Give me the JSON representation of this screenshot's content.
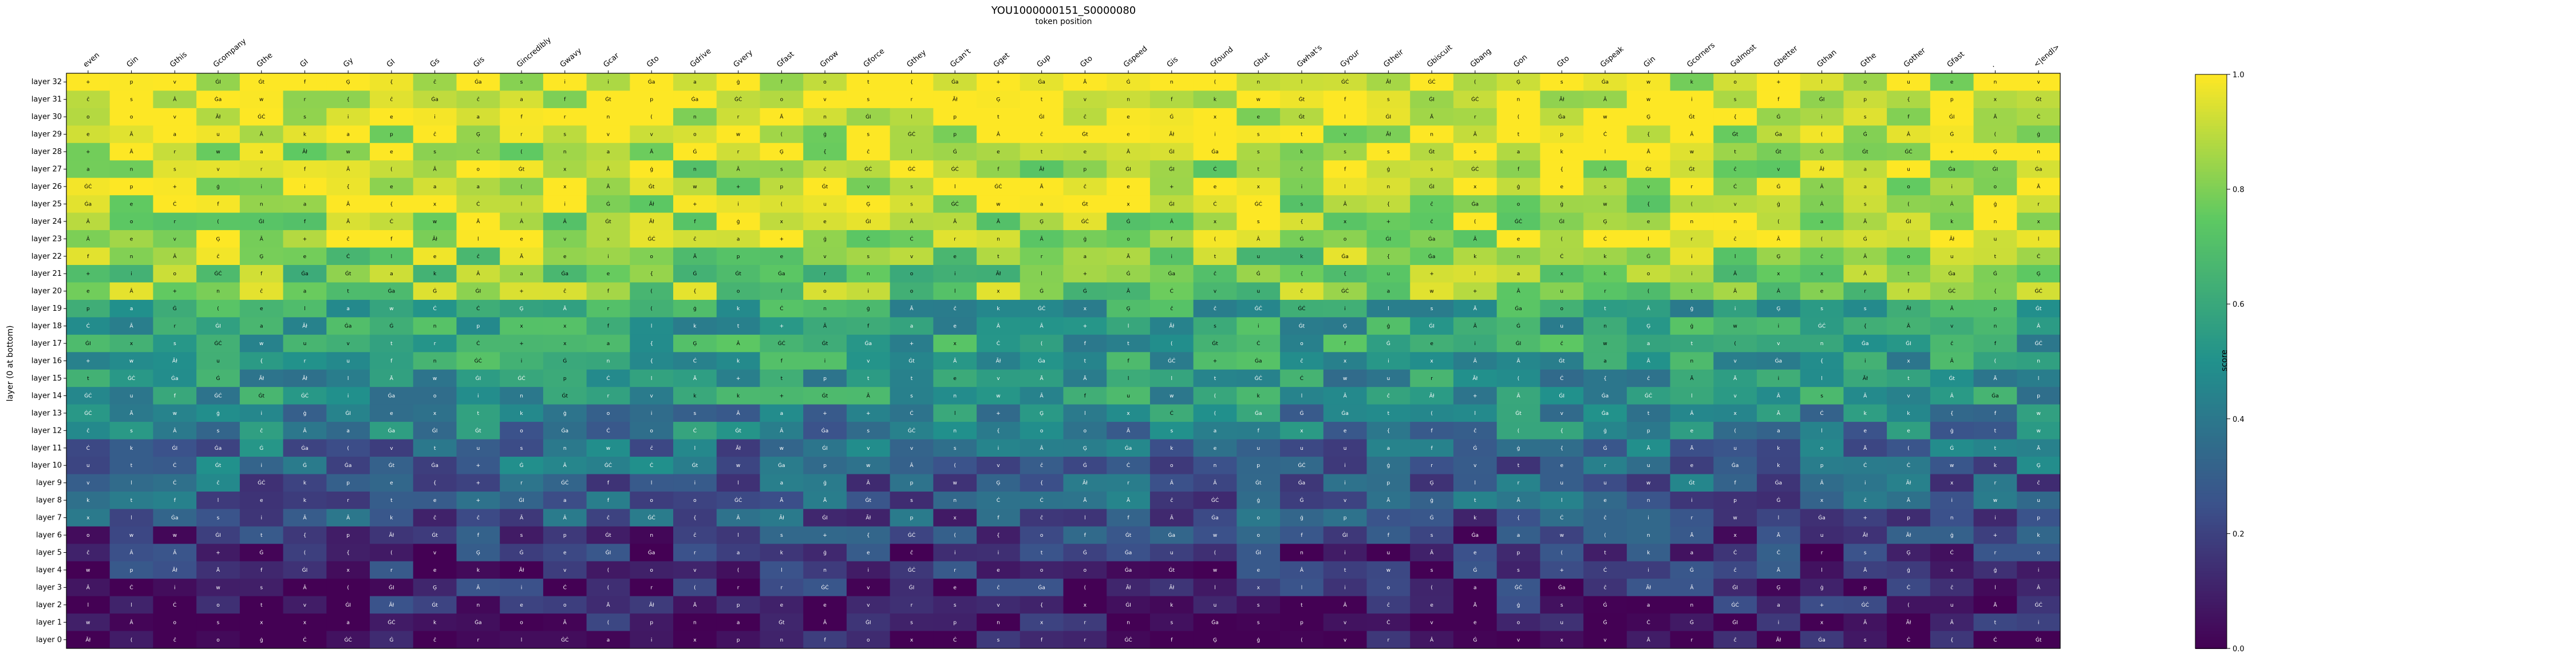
{
  "chart_data": {
    "type": "heatmap",
    "title": "YOU1000000151_S0000080",
    "subtitle": "token position",
    "ylabel": "layer (0 at bottom)",
    "colorbar_label": "score",
    "colormap": "viridis",
    "vmin": 0.0,
    "vmax": 1.0,
    "colorbar_ticks": [
      "0.0",
      "0.2",
      "0.4",
      "0.6",
      "0.8",
      "1.0"
    ],
    "x_tokens": [
      "even",
      "Gin",
      "Gthis",
      "Gcompany",
      "Gthe",
      "GI",
      "Gy",
      "GI",
      "Gs",
      "Gis",
      "Gincredibly",
      "Gwavy",
      "Gcar",
      "Gto",
      "Gdrive",
      "Gvery",
      "Gfast",
      "Gnow",
      "Gforce",
      "Gthey",
      "Gcan't",
      "Gget",
      "Gup",
      "Gto",
      "Gspeed",
      "Gis",
      "Gfound",
      "Gbut",
      "Gwhat's",
      "Gyour",
      "Gtheir",
      "Gbiscuit",
      "Gbang",
      "Gon",
      "Gto",
      "Gspeak",
      "Gin",
      "Gcorners",
      "Galmost",
      "Gbetter",
      "Gthan",
      "Gthe",
      "Gother",
      "Gfast",
      ".",
      "<|endl>"
    ],
    "y_layers": [
      "layer 32",
      "layer 31",
      "layer 30",
      "layer 29",
      "layer 28",
      "layer 27",
      "layer 26",
      "layer 25",
      "layer 24",
      "layer 23",
      "layer 22",
      "layer 21",
      "layer 20",
      "layer 19",
      "layer 18",
      "layer 17",
      "layer 16",
      "layer 15",
      "layer 14",
      "layer 13",
      "layer 12",
      "layer 11",
      "layer 10",
      "layer 9",
      "layer 8",
      "layer 7",
      "layer 6",
      "layer 5",
      "layer 4",
      "layer 3",
      "layer 2",
      "layer 1",
      "layer 0"
    ],
    "row_profile": [
      0.95,
      0.97,
      0.96,
      0.93,
      0.92,
      0.88,
      0.9,
      0.89,
      0.88,
      0.9,
      0.82,
      0.78,
      0.8,
      0.58,
      0.55,
      0.57,
      0.55,
      0.5,
      0.52,
      0.45,
      0.42,
      0.35,
      0.33,
      0.3,
      0.28,
      0.25,
      0.17,
      0.14,
      0.12,
      0.1,
      0.08,
      0.05,
      0.02
    ],
    "cell_glyphs": [
      "ĠĊ",
      "Ā",
      "Ġ",
      "Ā",
      "Ăł",
      "ģ",
      "Ģ",
      "{",
      "(",
      "+",
      "f",
      "i",
      "n",
      "a",
      "t",
      "s",
      "o",
      "k",
      "Â",
      "u",
      "e",
      "v",
      "w",
      "x",
      "Ċ",
      "ĉ",
      "Ġt",
      "Ġa",
      "ĠI",
      "r",
      "l",
      "p"
    ]
  }
}
